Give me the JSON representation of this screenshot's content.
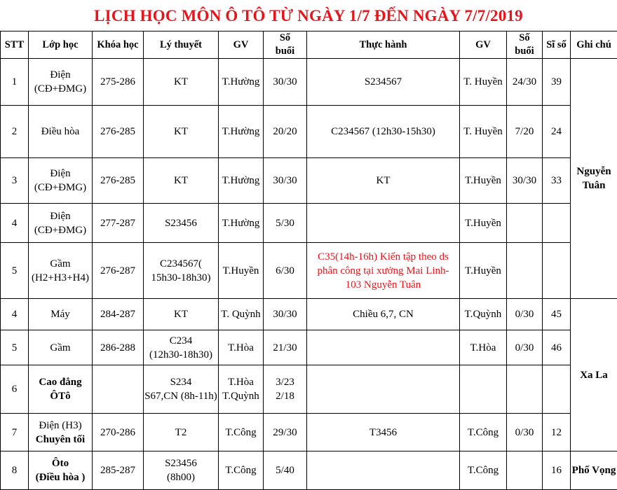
{
  "title": "LỊCH HỌC MÔN Ô TÔ TỪ NGÀY 1/7 ĐẾN NGÀY 7/7/2019",
  "colors": {
    "title": "#e8141b",
    "highlight_text": "#e8141b"
  },
  "headers": [
    "STT",
    "Lớp học",
    "Khóa học",
    "Lý thuyết",
    "GV",
    "Số\nbuổi",
    "Thực hành",
    "GV",
    "Số\nbuổi",
    "Sĩ số",
    "Ghi chú"
  ],
  "rows": [
    {
      "stt": "1",
      "lop": "Điện\n(CĐ+ĐMG)",
      "khoa": "275-286",
      "lt": "KT",
      "gv1": "T.Hường",
      "sb1": "30/30",
      "th": "S234567",
      "gv2": "T. Huyền",
      "sb2": "24/30",
      "siso": "39"
    },
    {
      "stt": "2",
      "lop": "Điều hòa",
      "khoa": "276-285",
      "lt": "KT",
      "gv1": "T.Hường",
      "sb1": "20/20",
      "th": "C234567 (12h30-15h30)",
      "gv2": "T. Huyền",
      "sb2": "7/20",
      "siso": "24"
    },
    {
      "stt": "3",
      "lop": "Điện\n(CĐ+ĐMG)",
      "khoa": "276-285",
      "lt": "KT",
      "gv1": "T.Hường",
      "sb1": "30/30",
      "th": "KT",
      "gv2": "T.Huyền",
      "sb2": "30/30",
      "siso": "33"
    },
    {
      "stt": "4",
      "lop": "Điện\n(CĐ+ĐMG)",
      "khoa": "277-287",
      "lt": "S23456",
      "gv1": "T.Hường",
      "sb1": "5/30",
      "th": "",
      "gv2": "T.Huyền",
      "sb2": "",
      "siso": ""
    },
    {
      "stt": "5",
      "lop": "Gầm\n(H2+H3+H4)",
      "khoa": "276-287",
      "lt": "C234567(\n15h30-18h30)",
      "gv1": "T.Huyền",
      "sb1": "6/30",
      "th": "C35(14h-16h) Kiến tập theo ds\nphân công tại xưởng Mai Linh-\n103 Nguyễn Tuân",
      "th_red": true,
      "gv2": "T.Huyền",
      "sb2": "",
      "siso": ""
    },
    {
      "stt": "4",
      "lop": "Máy",
      "khoa": "284-287",
      "lt": "KT",
      "gv1": "T. Quỳnh",
      "sb1": "30/30",
      "th": "Chiều 6,7, CN",
      "gv2": "T.Quỳnh",
      "sb2": "0/30",
      "siso": "45"
    },
    {
      "stt": "5",
      "lop": "Gầm",
      "khoa": "286-288",
      "lt": "C234\n(12h30-18h30)",
      "gv1": "T.Hòa",
      "sb1": "21/30",
      "th": "",
      "gv2": "T.Hòa",
      "sb2": "0/30",
      "siso": "46"
    },
    {
      "stt": "6",
      "lop": "Cao đẳng\nÔTô",
      "lop_bold": true,
      "khoa": "",
      "lt": "S234\nS67,CN (8h-11h)",
      "gv1": "T.Hòa\nT.Quỳnh",
      "sb1": "3/23\n2/18",
      "th": "",
      "gv2": "",
      "sb2": "",
      "siso": ""
    },
    {
      "stt": "7",
      "lop": "Điện (H3)\nChuyên tối",
      "lop_bold2": true,
      "khoa": "270-286",
      "lt": "T2",
      "gv1": "T.Công",
      "sb1": "29/30",
      "th": "T3456",
      "gv2": "T.Công",
      "sb2": "0/30",
      "siso": "12"
    },
    {
      "stt": "8",
      "lop": "Ôto\n(Điều hòa )",
      "lop_bold": true,
      "khoa": "285-287",
      "lt": "S23456\n(8h00)",
      "gv1": "T.Công",
      "sb1": "5/40",
      "th": "",
      "gv2": "T.Công",
      "sb2": "",
      "siso": "16"
    }
  ],
  "notes": [
    {
      "text": "Nguyễn\nTuân",
      "span": 5
    },
    {
      "text": "Xa La",
      "span": 4
    },
    {
      "text": "Phố Vọng",
      "span": 1
    }
  ]
}
